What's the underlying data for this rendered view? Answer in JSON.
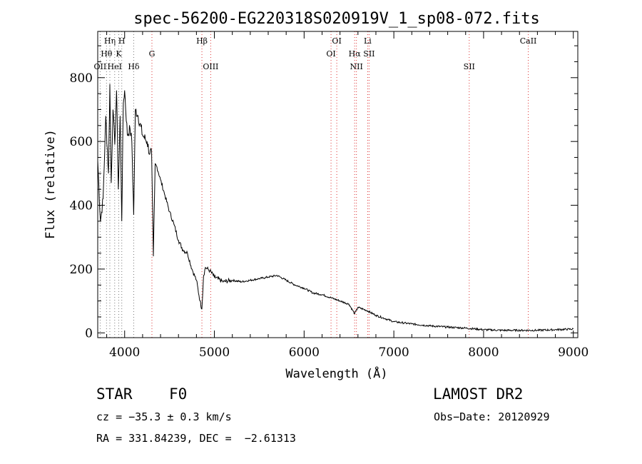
{
  "chart_data": {
    "type": "line",
    "title": "spec-56200-EG220318S020919V_1_sp08-072.fits",
    "xlabel": "Wavelength (Å)",
    "ylabel": "Flux (relative)",
    "xlim": [
      3700,
      9050
    ],
    "ylim": [
      -15,
      945
    ],
    "x_ticks": [
      4000,
      5000,
      6000,
      7000,
      8000,
      9000
    ],
    "y_ticks": [
      0,
      200,
      400,
      600,
      800
    ],
    "grid": false,
    "series": [
      {
        "color": "#000000",
        "x": [
          3700,
          3730,
          3760,
          3790,
          3820,
          3835,
          3850,
          3870,
          3890,
          3910,
          3930,
          3950,
          3968,
          3985,
          4000,
          4030,
          4060,
          4080,
          4101,
          4120,
          4150,
          4200,
          4250,
          4280,
          4300,
          4320,
          4340,
          4360,
          4400,
          4450,
          4500,
          4550,
          4600,
          4650,
          4700,
          4750,
          4800,
          4840,
          4861,
          4880,
          4900,
          4950,
          5000,
          5100,
          5200,
          5300,
          5400,
          5500,
          5600,
          5700,
          5800,
          5900,
          6000,
          6100,
          6200,
          6300,
          6400,
          6500,
          6563,
          6600,
          6700,
          6800,
          6900,
          7000,
          7200,
          7400,
          7600,
          7800,
          8000,
          8200,
          8400,
          8600,
          8800,
          9000
        ],
        "y": [
          540,
          350,
          420,
          680,
          500,
          780,
          470,
          700,
          590,
          760,
          450,
          680,
          350,
          720,
          760,
          620,
          640,
          600,
          370,
          700,
          680,
          620,
          600,
          560,
          570,
          240,
          530,
          520,
          480,
          430,
          380,
          340,
          290,
          260,
          250,
          200,
          165,
          100,
          75,
          180,
          205,
          195,
          175,
          160,
          165,
          160,
          165,
          170,
          175,
          180,
          165,
          150,
          140,
          125,
          120,
          110,
          100,
          90,
          60,
          80,
          70,
          55,
          45,
          35,
          28,
          22,
          18,
          15,
          10,
          8,
          8,
          8,
          10,
          12
        ]
      }
    ],
    "spectral_lines": [
      {
        "label": "Hθ",
        "x": 3798,
        "row": 2
      },
      {
        "label": "Hη",
        "x": 3835,
        "row": 1
      },
      {
        "label": "OII",
        "x": 3727,
        "row": 3
      },
      {
        "label": "HeI",
        "x": 3889,
        "row": 3
      },
      {
        "label": "K",
        "x": 3934,
        "row": 2
      },
      {
        "label": "H",
        "x": 3968,
        "row": 1
      },
      {
        "label": "Hδ",
        "x": 4101,
        "row": 3
      },
      {
        "label": "G",
        "x": 4304,
        "row": 2
      },
      {
        "label": "Hβ",
        "x": 4861,
        "row": 1
      },
      {
        "label": "OIII",
        "x": 4959,
        "row": 3
      },
      {
        "label": "OI",
        "x": 6300,
        "row": 2
      },
      {
        "label": "OI",
        "x": 6364,
        "row": 1
      },
      {
        "label": "Hα",
        "x": 6563,
        "row": 2
      },
      {
        "label": "NII",
        "x": 6583,
        "row": 3
      },
      {
        "label": "Li",
        "x": 6708,
        "row": 1
      },
      {
        "label": "SII",
        "x": 6724,
        "row": 2
      },
      {
        "label": "SII",
        "x": 7840,
        "row": 3
      },
      {
        "label": "CaII",
        "x": 8498,
        "row": 1
      }
    ]
  },
  "info": {
    "object_class": "STAR",
    "subclass": "F0",
    "survey": "LAMOST DR2",
    "cz": "cz = −35.3 ± 0.3 km/s",
    "obs_date": "Obs−Date: 20120929",
    "coords": "RA = 331.84239, DEC =  −2.61313"
  }
}
